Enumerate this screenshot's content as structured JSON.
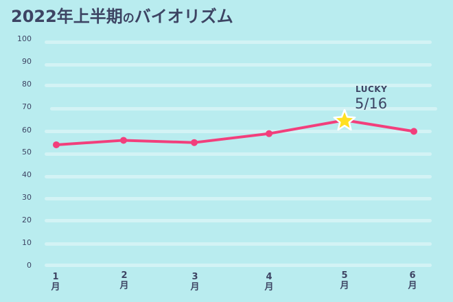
{
  "title": {
    "main": "2022年上半期",
    "particle": "の",
    "suffix": "バイオリズム"
  },
  "colors": {
    "background": "#b9ecef",
    "gridline": "#d3f3f5",
    "line": "#f23f7c",
    "star_fill": "#ffe021",
    "star_stroke": "#ffffff",
    "text": "#3d4463"
  },
  "annotation": {
    "label": "LUCKY",
    "date": "5/16"
  },
  "chart_data": {
    "type": "line",
    "title": "2022年上半期のバイオリズム",
    "xlabel": "",
    "ylabel": "",
    "categories": [
      "1月",
      "2月",
      "3月",
      "4月",
      "5月",
      "6月"
    ],
    "x_tick_labels": [
      {
        "num": "1",
        "unit": "月"
      },
      {
        "num": "2",
        "unit": "月"
      },
      {
        "num": "3",
        "unit": "月"
      },
      {
        "num": "4",
        "unit": "月"
      },
      {
        "num": "5",
        "unit": "月"
      },
      {
        "num": "6",
        "unit": "月"
      }
    ],
    "series": [
      {
        "name": "バイオリズム",
        "values": [
          54,
          56,
          55,
          59,
          65,
          60
        ]
      }
    ],
    "highlight": {
      "index": 4,
      "marker": "star",
      "label": "LUCKY",
      "date": "5/16"
    },
    "y_ticks": [
      "100",
      "90",
      "80",
      "70",
      "60",
      "50",
      "40",
      "30",
      "20",
      "10",
      "0"
    ],
    "ylim": [
      0,
      100
    ],
    "grid": true,
    "legend": "none"
  }
}
